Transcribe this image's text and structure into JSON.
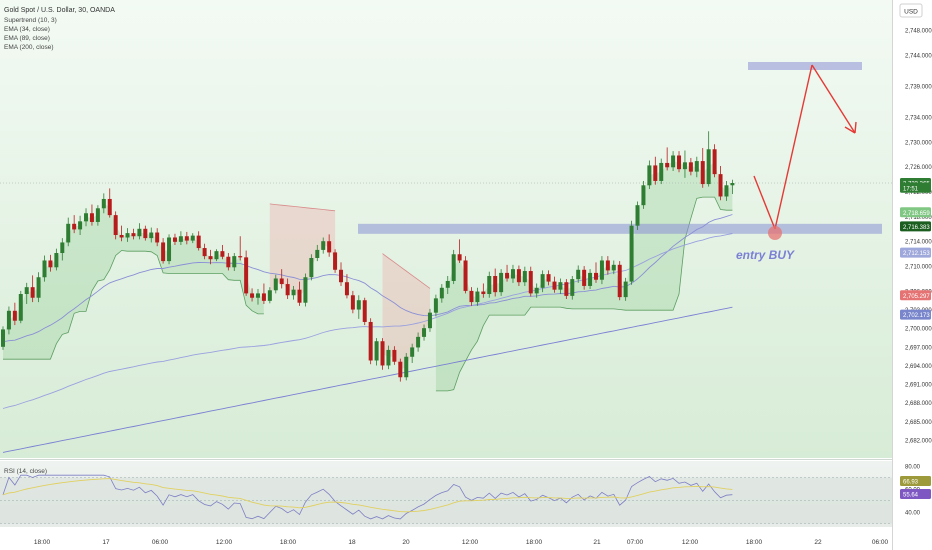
{
  "chart_data": {
    "type": "candlestick",
    "instrument_label": "Gold Spot / U.S. Dollar, 30, OANDA",
    "indicators": [
      "Supertrend (10, 3)",
      "EMA (34, close)",
      "EMA (89, close)",
      "EMA (200, close)"
    ],
    "currency": "USD",
    "price_ticks": [
      "2,748.000",
      "2,744.000",
      "2,739.000",
      "2,734.000",
      "2,730.000",
      "2,726.000",
      "2,722.000",
      "2,718.000",
      "2,714.000",
      "2,710.000",
      "2,706.000",
      "2,703.000",
      "2,700.000",
      "2,697.000",
      "2,694.000",
      "2,691.000",
      "2,688.000",
      "2,685.000",
      "2,682.000"
    ],
    "price_tick_values": [
      2748,
      2744,
      2739,
      2734,
      2730,
      2726,
      2722,
      2718,
      2714,
      2710,
      2706,
      2703,
      2700,
      2697,
      2694,
      2691,
      2688,
      2685,
      2682
    ],
    "price_badges": [
      {
        "text": "2,723.365",
        "value": 2723.365,
        "color": "#2e7d32"
      },
      {
        "text": "17:51",
        "value": 2722.6,
        "color": "#2e7d32"
      },
      {
        "text": "2,718.659",
        "value": 2718.659,
        "color": "#81c784"
      },
      {
        "text": "2,716.383",
        "value": 2716.383,
        "color": "#1b5e20"
      },
      {
        "text": "2,712.153",
        "value": 2712.153,
        "color": "#9fa8da"
      },
      {
        "text": "2,705.297",
        "value": 2705.297,
        "color": "#e57373"
      },
      {
        "text": "2,702.173",
        "value": 2702.173,
        "color": "#7986cb"
      }
    ],
    "time_labels": [
      "18:00",
      "17",
      "06:00",
      "12:00",
      "18:00",
      "18",
      "20",
      "12:00",
      "18:00",
      "21",
      "07:00",
      "12:00",
      "18:00",
      "22",
      "06:00"
    ],
    "rsi": {
      "label": "RSI (14, close)",
      "ticks": [
        "80.00",
        "60.00",
        "40.00"
      ],
      "tick_values": [
        80,
        60,
        40
      ],
      "badges": [
        {
          "text": "66.93",
          "value": 66.93,
          "color": "#9c9a3a"
        },
        {
          "text": "55.64",
          "value": 55.64,
          "color": "#7e57c2"
        }
      ]
    },
    "candles": [
      [
        2697.0,
        2700.3,
        2696.5,
        2699.8
      ],
      [
        2699.8,
        2703.5,
        2699.0,
        2702.8
      ],
      [
        2702.8,
        2704.1,
        2700.5,
        2701.2
      ],
      [
        2701.2,
        2706.0,
        2700.8,
        2705.5
      ],
      [
        2705.5,
        2707.3,
        2703.9,
        2706.6
      ],
      [
        2706.6,
        2708.5,
        2704.2,
        2704.9
      ],
      [
        2704.9,
        2709.0,
        2704.2,
        2708.2
      ],
      [
        2708.2,
        2711.7,
        2707.5,
        2710.9
      ],
      [
        2710.9,
        2711.8,
        2709.1,
        2709.8
      ],
      [
        2709.8,
        2712.8,
        2709.3,
        2712.1
      ],
      [
        2712.1,
        2714.5,
        2710.9,
        2713.8
      ],
      [
        2713.8,
        2717.8,
        2713.2,
        2716.8
      ],
      [
        2716.8,
        2718.2,
        2715.3,
        2715.9
      ],
      [
        2715.9,
        2718.1,
        2715.0,
        2717.2
      ],
      [
        2717.2,
        2719.3,
        2716.4,
        2718.5
      ],
      [
        2718.5,
        2719.9,
        2716.5,
        2717.1
      ],
      [
        2717.1,
        2719.8,
        2716.5,
        2719.3
      ],
      [
        2719.3,
        2721.7,
        2718.5,
        2720.8
      ],
      [
        2720.8,
        2722.5,
        2717.8,
        2718.2
      ],
      [
        2718.2,
        2718.8,
        2714.3,
        2715.0
      ],
      [
        2715.0,
        2716.5,
        2714.0,
        2714.6
      ],
      [
        2714.6,
        2716.1,
        2713.9,
        2715.3
      ],
      [
        2715.3,
        2716.0,
        2714.3,
        2714.8
      ],
      [
        2714.8,
        2716.9,
        2714.3,
        2716.0
      ],
      [
        2716.0,
        2716.5,
        2714.1,
        2714.5
      ],
      [
        2714.5,
        2716.2,
        2713.8,
        2715.4
      ],
      [
        2715.4,
        2716.1,
        2713.2,
        2713.8
      ],
      [
        2713.8,
        2714.5,
        2710.4,
        2710.8
      ],
      [
        2710.8,
        2715.1,
        2710.3,
        2714.6
      ],
      [
        2714.6,
        2715.2,
        2713.4,
        2713.9
      ],
      [
        2713.9,
        2715.6,
        2713.4,
        2714.8
      ],
      [
        2714.8,
        2715.5,
        2713.5,
        2714.1
      ],
      [
        2714.1,
        2715.3,
        2713.7,
        2714.9
      ],
      [
        2714.9,
        2715.6,
        2712.5,
        2712.9
      ],
      [
        2712.9,
        2713.6,
        2711.1,
        2711.6
      ],
      [
        2711.6,
        2712.6,
        2710.3,
        2711.1
      ],
      [
        2711.1,
        2712.7,
        2710.8,
        2712.4
      ],
      [
        2712.4,
        2713.4,
        2711.1,
        2711.5
      ],
      [
        2711.5,
        2712.1,
        2709.3,
        2709.8
      ],
      [
        2709.8,
        2712.1,
        2709.2,
        2711.6
      ],
      [
        2711.6,
        2714.8,
        2710.9,
        2711.4
      ],
      [
        2711.4,
        2712.5,
        2705.2,
        2705.6
      ],
      [
        2705.6,
        2706.4,
        2704.3,
        2704.9
      ],
      [
        2704.9,
        2706.3,
        2703.8,
        2705.6
      ],
      [
        2705.6,
        2707.2,
        2703.9,
        2704.4
      ],
      [
        2704.4,
        2706.6,
        2704.0,
        2706.1
      ],
      [
        2706.1,
        2708.6,
        2705.6,
        2708.0
      ],
      [
        2708.0,
        2709.5,
        2706.4,
        2707.1
      ],
      [
        2707.1,
        2708.0,
        2704.7,
        2705.3
      ],
      [
        2705.3,
        2706.8,
        2704.6,
        2706.2
      ],
      [
        2706.2,
        2707.5,
        2703.6,
        2704.1
      ],
      [
        2704.1,
        2708.8,
        2703.5,
        2708.2
      ],
      [
        2708.2,
        2711.9,
        2707.7,
        2711.3
      ],
      [
        2711.3,
        2713.4,
        2710.8,
        2712.6
      ],
      [
        2712.6,
        2714.6,
        2712.0,
        2714.0
      ],
      [
        2714.0,
        2715.1,
        2711.5,
        2712.2
      ],
      [
        2712.2,
        2712.7,
        2708.9,
        2709.4
      ],
      [
        2709.4,
        2710.6,
        2706.8,
        2707.4
      ],
      [
        2707.4,
        2708.7,
        2704.8,
        2705.3
      ],
      [
        2705.3,
        2706.0,
        2702.4,
        2703.0
      ],
      [
        2703.0,
        2705.3,
        2701.5,
        2704.5
      ],
      [
        2704.5,
        2704.9,
        2700.5,
        2701.0
      ],
      [
        2701.0,
        2701.6,
        2694.2,
        2694.8
      ],
      [
        2694.8,
        2698.4,
        2694.0,
        2697.9
      ],
      [
        2697.9,
        2698.4,
        2693.3,
        2694.0
      ],
      [
        2694.0,
        2697.2,
        2693.4,
        2696.5
      ],
      [
        2696.5,
        2697.1,
        2694.1,
        2694.6
      ],
      [
        2694.6,
        2695.1,
        2691.4,
        2692.1
      ],
      [
        2692.1,
        2696.0,
        2691.6,
        2695.4
      ],
      [
        2695.4,
        2697.5,
        2694.4,
        2696.9
      ],
      [
        2696.9,
        2699.3,
        2696.2,
        2698.6
      ],
      [
        2698.6,
        2700.6,
        2698.0,
        2700.0
      ],
      [
        2700.0,
        2703.1,
        2699.4,
        2702.5
      ],
      [
        2702.5,
        2705.4,
        2701.9,
        2704.8
      ],
      [
        2704.8,
        2707.1,
        2704.1,
        2706.5
      ],
      [
        2706.5,
        2708.4,
        2705.5,
        2707.6
      ],
      [
        2707.6,
        2712.6,
        2707.1,
        2711.9
      ],
      [
        2711.9,
        2714.3,
        2710.5,
        2710.9
      ],
      [
        2710.9,
        2711.6,
        2705.6,
        2706.0
      ],
      [
        2706.0,
        2706.6,
        2703.6,
        2704.2
      ],
      [
        2704.2,
        2706.5,
        2703.6,
        2705.9
      ],
      [
        2705.9,
        2707.2,
        2704.9,
        2705.5
      ],
      [
        2705.5,
        2709.1,
        2704.9,
        2708.4
      ],
      [
        2708.4,
        2709.6,
        2705.1,
        2705.8
      ],
      [
        2705.8,
        2709.5,
        2705.2,
        2708.9
      ],
      [
        2708.9,
        2710.2,
        2707.5,
        2708.0
      ],
      [
        2708.0,
        2710.2,
        2707.3,
        2709.5
      ],
      [
        2709.5,
        2710.1,
        2706.8,
        2707.4
      ],
      [
        2707.4,
        2709.9,
        2706.8,
        2709.2
      ],
      [
        2709.2,
        2709.9,
        2705.1,
        2705.6
      ],
      [
        2705.6,
        2707.2,
        2704.9,
        2706.5
      ],
      [
        2706.5,
        2709.3,
        2705.8,
        2708.7
      ],
      [
        2708.7,
        2709.3,
        2706.9,
        2707.5
      ],
      [
        2707.5,
        2708.3,
        2705.7,
        2706.2
      ],
      [
        2706.2,
        2708.0,
        2705.5,
        2707.4
      ],
      [
        2707.4,
        2707.9,
        2704.7,
        2705.2
      ],
      [
        2705.2,
        2708.4,
        2704.6,
        2707.9
      ],
      [
        2707.9,
        2710.1,
        2707.3,
        2709.4
      ],
      [
        2709.4,
        2710.0,
        2706.2,
        2706.8
      ],
      [
        2706.8,
        2709.5,
        2706.3,
        2708.9
      ],
      [
        2708.9,
        2710.6,
        2707.3,
        2707.8
      ],
      [
        2707.8,
        2711.6,
        2707.1,
        2710.9
      ],
      [
        2710.9,
        2711.6,
        2708.6,
        2709.3
      ],
      [
        2709.3,
        2710.9,
        2708.7,
        2710.2
      ],
      [
        2710.2,
        2710.8,
        2704.5,
        2705.0
      ],
      [
        2705.0,
        2708.1,
        2704.4,
        2707.5
      ],
      [
        2707.5,
        2717.3,
        2707.0,
        2716.5
      ],
      [
        2716.5,
        2720.4,
        2715.8,
        2719.8
      ],
      [
        2719.8,
        2723.7,
        2719.2,
        2723.0
      ],
      [
        2723.0,
        2727.0,
        2722.4,
        2726.2
      ],
      [
        2726.2,
        2727.6,
        2723.1,
        2723.7
      ],
      [
        2723.7,
        2727.3,
        2723.2,
        2726.6
      ],
      [
        2726.6,
        2729.1,
        2725.4,
        2725.9
      ],
      [
        2725.9,
        2728.5,
        2725.3,
        2727.8
      ],
      [
        2727.8,
        2728.5,
        2725.1,
        2725.6
      ],
      [
        2725.6,
        2728.6,
        2724.2,
        2726.7
      ],
      [
        2726.7,
        2727.4,
        2724.6,
        2725.2
      ],
      [
        2725.2,
        2727.6,
        2724.3,
        2726.9
      ],
      [
        2726.9,
        2729.0,
        2722.6,
        2723.2
      ],
      [
        2723.2,
        2731.7,
        2722.8,
        2728.8
      ],
      [
        2728.8,
        2729.6,
        2724.3,
        2724.8
      ],
      [
        2724.8,
        2726.1,
        2720.6,
        2721.2
      ],
      [
        2721.2,
        2723.7,
        2720.5,
        2723.0
      ],
      [
        2723.0,
        2723.9,
        2721.6,
        2723.37
      ]
    ],
    "bull_color": "#2e7d32",
    "bear_color": "#b71c1c",
    "accent_line_color": "#8b8fd6",
    "arrow_color": "#e53935",
    "annotation_text": "entry BUY"
  }
}
